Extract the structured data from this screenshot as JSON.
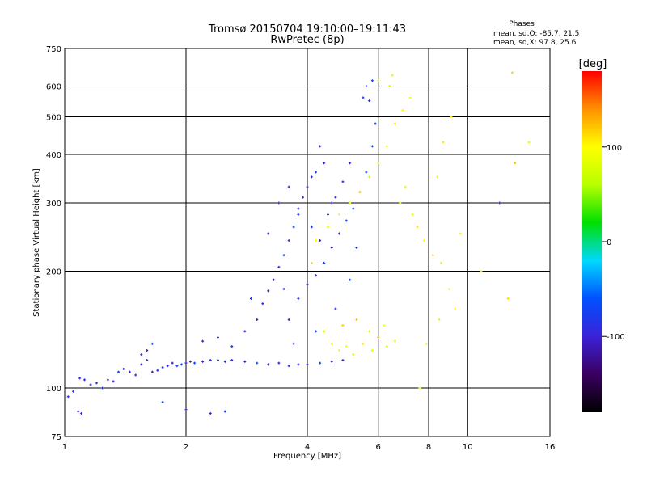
{
  "chart_data": {
    "type": "scatter",
    "title": "Tromsø 20150704 19:10:00–19:11:43",
    "subtitle": "RwPretec (8p)",
    "xlabel": "Frequency [MHz]",
    "ylabel": "Stationary phase Virtual Height [km]",
    "x_scale": "log",
    "y_scale": "log",
    "xlim": [
      1,
      16
    ],
    "ylim": [
      75,
      750
    ],
    "x_ticks": [
      1,
      2,
      4,
      6,
      8,
      10,
      16
    ],
    "x_tick_labels": [
      "1",
      "2",
      "4",
      "6",
      "8",
      "10",
      "16"
    ],
    "y_ticks": [
      75,
      100,
      200,
      300,
      400,
      500,
      600,
      750
    ],
    "y_tick_labels": [
      "75",
      "100",
      "200",
      "300",
      "400",
      "500",
      "600",
      "750"
    ],
    "grid": true,
    "stats_header": "Phases",
    "stats_lines": [
      "mean, sd,O: -85.7, 21.5",
      "mean, sd,X:  97.8, 25.6"
    ],
    "colorbar": {
      "label": "[deg]",
      "range": [
        -180,
        180
      ],
      "ticks": [
        100,
        0,
        -100
      ],
      "tick_labels": [
        "100",
        "0",
        "-100"
      ],
      "colormap": [
        "#000000",
        "#3a0060",
        "#3b22d8",
        "#0050ff",
        "#00d8ff",
        "#00e000",
        "#b8ff00",
        "#ffff00",
        "#ff9000",
        "#ff0000"
      ]
    },
    "series": [
      {
        "phase_mean": -85.7,
        "phase_sd": 21.5,
        "points": [
          {
            "x": 1.02,
            "y": 95
          },
          {
            "x": 1.05,
            "y": 98
          },
          {
            "x": 1.08,
            "y": 87
          },
          {
            "x": 1.1,
            "y": 86
          },
          {
            "x": 1.09,
            "y": 106
          },
          {
            "x": 1.12,
            "y": 105
          },
          {
            "x": 1.16,
            "y": 102
          },
          {
            "x": 1.2,
            "y": 103
          },
          {
            "x": 1.24,
            "y": 100
          },
          {
            "x": 1.28,
            "y": 105
          },
          {
            "x": 1.32,
            "y": 104
          },
          {
            "x": 1.36,
            "y": 110
          },
          {
            "x": 1.4,
            "y": 112
          },
          {
            "x": 1.45,
            "y": 110
          },
          {
            "x": 1.5,
            "y": 108
          },
          {
            "x": 1.55,
            "y": 115
          },
          {
            "x": 1.6,
            "y": 118
          },
          {
            "x": 1.65,
            "y": 110
          },
          {
            "x": 1.7,
            "y": 111
          },
          {
            "x": 1.75,
            "y": 113
          },
          {
            "x": 1.8,
            "y": 114
          },
          {
            "x": 1.85,
            "y": 116
          },
          {
            "x": 1.9,
            "y": 114
          },
          {
            "x": 1.95,
            "y": 115
          },
          {
            "x": 2.0,
            "y": 116
          },
          {
            "x": 2.05,
            "y": 117
          },
          {
            "x": 2.1,
            "y": 116
          },
          {
            "x": 2.2,
            "y": 117
          },
          {
            "x": 2.3,
            "y": 118
          },
          {
            "x": 2.4,
            "y": 118
          },
          {
            "x": 2.5,
            "y": 117
          },
          {
            "x": 2.6,
            "y": 118
          },
          {
            "x": 2.8,
            "y": 117
          },
          {
            "x": 3.0,
            "y": 116
          },
          {
            "x": 3.2,
            "y": 115
          },
          {
            "x": 3.4,
            "y": 116
          },
          {
            "x": 3.6,
            "y": 114
          },
          {
            "x": 3.8,
            "y": 115
          },
          {
            "x": 4.0,
            "y": 115
          },
          {
            "x": 4.3,
            "y": 116
          },
          {
            "x": 4.6,
            "y": 117
          },
          {
            "x": 4.9,
            "y": 118
          },
          {
            "x": 1.6,
            "y": 125
          },
          {
            "x": 1.65,
            "y": 130
          },
          {
            "x": 1.55,
            "y": 122
          },
          {
            "x": 1.75,
            "y": 92
          },
          {
            "x": 2.0,
            "y": 88
          },
          {
            "x": 2.3,
            "y": 86
          },
          {
            "x": 2.5,
            "y": 87
          },
          {
            "x": 2.2,
            "y": 132
          },
          {
            "x": 2.4,
            "y": 135
          },
          {
            "x": 2.6,
            "y": 128
          },
          {
            "x": 2.8,
            "y": 140
          },
          {
            "x": 3.0,
            "y": 150
          },
          {
            "x": 3.1,
            "y": 165
          },
          {
            "x": 3.2,
            "y": 178
          },
          {
            "x": 3.3,
            "y": 190
          },
          {
            "x": 3.4,
            "y": 205
          },
          {
            "x": 3.5,
            "y": 220
          },
          {
            "x": 3.6,
            "y": 240
          },
          {
            "x": 3.7,
            "y": 260
          },
          {
            "x": 3.8,
            "y": 290
          },
          {
            "x": 3.9,
            "y": 310
          },
          {
            "x": 4.0,
            "y": 330
          },
          {
            "x": 4.1,
            "y": 350
          },
          {
            "x": 4.2,
            "y": 360
          },
          {
            "x": 3.6,
            "y": 150
          },
          {
            "x": 3.8,
            "y": 170
          },
          {
            "x": 4.0,
            "y": 185
          },
          {
            "x": 4.2,
            "y": 195
          },
          {
            "x": 4.4,
            "y": 210
          },
          {
            "x": 4.6,
            "y": 230
          },
          {
            "x": 4.8,
            "y": 250
          },
          {
            "x": 5.0,
            "y": 270
          },
          {
            "x": 5.2,
            "y": 290
          },
          {
            "x": 5.4,
            "y": 320
          },
          {
            "x": 5.6,
            "y": 360
          },
          {
            "x": 5.8,
            "y": 420
          },
          {
            "x": 5.9,
            "y": 480
          },
          {
            "x": 5.7,
            "y": 550
          },
          {
            "x": 5.6,
            "y": 600
          },
          {
            "x": 4.4,
            "y": 380
          },
          {
            "x": 4.6,
            "y": 300
          },
          {
            "x": 4.9,
            "y": 340
          },
          {
            "x": 3.4,
            "y": 300
          },
          {
            "x": 3.6,
            "y": 330
          },
          {
            "x": 3.8,
            "y": 280
          },
          {
            "x": 4.1,
            "y": 260
          },
          {
            "x": 4.3,
            "y": 240
          },
          {
            "x": 4.5,
            "y": 280
          },
          {
            "x": 4.7,
            "y": 310
          },
          {
            "x": 3.2,
            "y": 250
          },
          {
            "x": 3.5,
            "y": 180
          },
          {
            "x": 2.9,
            "y": 170
          },
          {
            "x": 3.7,
            "y": 130
          },
          {
            "x": 4.2,
            "y": 140
          },
          {
            "x": 4.7,
            "y": 160
          },
          {
            "x": 5.1,
            "y": 190
          },
          {
            "x": 5.3,
            "y": 230
          },
          {
            "x": 4.3,
            "y": 420
          },
          {
            "x": 5.1,
            "y": 380
          },
          {
            "x": 5.5,
            "y": 560
          },
          {
            "x": 5.8,
            "y": 620
          },
          {
            "x": 12.0,
            "y": 300
          }
        ]
      },
      {
        "phase_mean": 97.8,
        "phase_sd": 25.6,
        "points": [
          {
            "x": 4.6,
            "y": 130
          },
          {
            "x": 4.8,
            "y": 125
          },
          {
            "x": 5.0,
            "y": 128
          },
          {
            "x": 5.2,
            "y": 122
          },
          {
            "x": 5.5,
            "y": 130
          },
          {
            "x": 5.8,
            "y": 125
          },
          {
            "x": 6.0,
            "y": 135
          },
          {
            "x": 6.3,
            "y": 128
          },
          {
            "x": 6.6,
            "y": 132
          },
          {
            "x": 4.4,
            "y": 140
          },
          {
            "x": 4.9,
            "y": 145
          },
          {
            "x": 5.3,
            "y": 150
          },
          {
            "x": 5.7,
            "y": 140
          },
          {
            "x": 6.2,
            "y": 145
          },
          {
            "x": 4.2,
            "y": 240
          },
          {
            "x": 4.5,
            "y": 260
          },
          {
            "x": 4.8,
            "y": 280
          },
          {
            "x": 5.1,
            "y": 300
          },
          {
            "x": 5.4,
            "y": 320
          },
          {
            "x": 5.7,
            "y": 350
          },
          {
            "x": 6.0,
            "y": 380
          },
          {
            "x": 6.3,
            "y": 420
          },
          {
            "x": 6.6,
            "y": 480
          },
          {
            "x": 6.9,
            "y": 520
          },
          {
            "x": 7.2,
            "y": 560
          },
          {
            "x": 6.4,
            "y": 600
          },
          {
            "x": 6.5,
            "y": 640
          },
          {
            "x": 6.0,
            "y": 620
          },
          {
            "x": 6.8,
            "y": 300
          },
          {
            "x": 7.0,
            "y": 330
          },
          {
            "x": 7.3,
            "y": 280
          },
          {
            "x": 7.5,
            "y": 260
          },
          {
            "x": 7.8,
            "y": 240
          },
          {
            "x": 8.2,
            "y": 220
          },
          {
            "x": 8.6,
            "y": 210
          },
          {
            "x": 9.0,
            "y": 180
          },
          {
            "x": 9.3,
            "y": 160
          },
          {
            "x": 9.6,
            "y": 250
          },
          {
            "x": 8.4,
            "y": 350
          },
          {
            "x": 8.7,
            "y": 430
          },
          {
            "x": 9.1,
            "y": 500
          },
          {
            "x": 10.8,
            "y": 200
          },
          {
            "x": 12.6,
            "y": 170
          },
          {
            "x": 12.9,
            "y": 650
          },
          {
            "x": 13.1,
            "y": 380
          },
          {
            "x": 14.2,
            "y": 430
          },
          {
            "x": 7.6,
            "y": 100
          },
          {
            "x": 7.9,
            "y": 130
          },
          {
            "x": 8.5,
            "y": 150
          },
          {
            "x": 4.1,
            "y": 210
          }
        ]
      }
    ]
  }
}
